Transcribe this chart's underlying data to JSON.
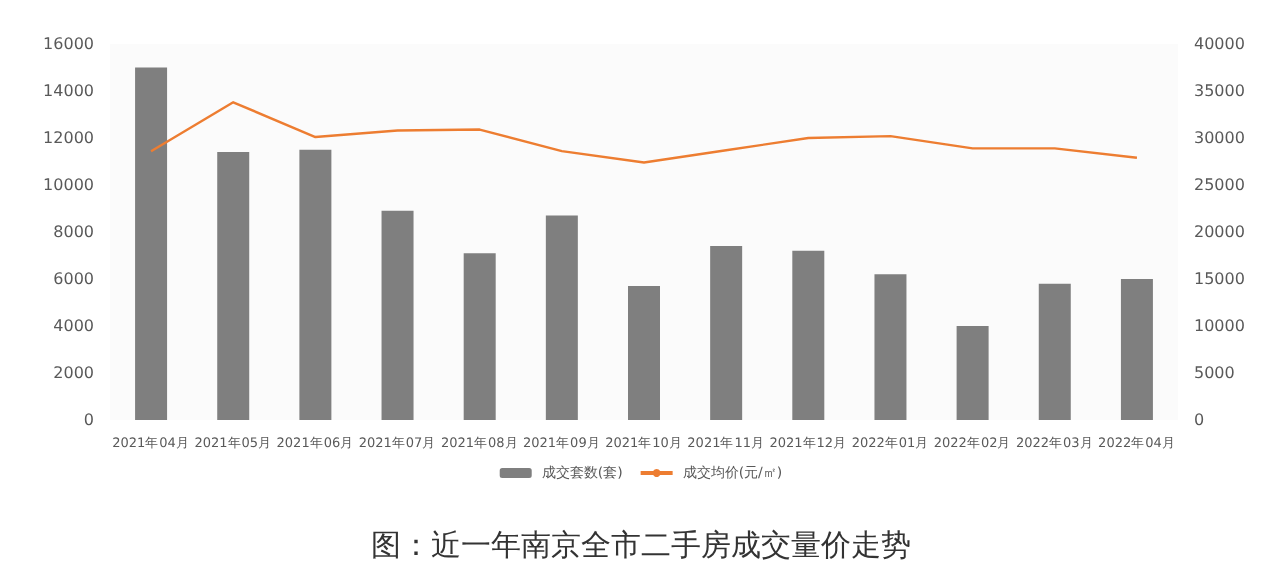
{
  "chart_data": {
    "type": "bar",
    "title": "图：近一年南京全市二手房成交量价走势",
    "categories": [
      "2021年04月",
      "2021年05月",
      "2021年06月",
      "2021年07月",
      "2021年08月",
      "2021年09月",
      "2021年10月",
      "2021年11月",
      "2021年12月",
      "2022年01月",
      "2022年02月",
      "2022年03月",
      "2022年04月"
    ],
    "series": [
      {
        "name": "成交套数(套)",
        "color": "#7f7f7f",
        "values": [
          15000,
          11400,
          11500,
          8900,
          7100,
          8700,
          5700,
          7400,
          7200,
          6200,
          4000,
          5800,
          6000
        ]
      },
      {
        "name": "成交均价(元/㎡)",
        "type": "line",
        "axis": "y2",
        "color": "#ed7d31",
        "values": [
          28600,
          33800,
          30100,
          30800,
          30900,
          28600,
          27400,
          28700,
          30000,
          30200,
          28900,
          28900,
          27900
        ]
      }
    ],
    "ylim": [
      0,
      16000
    ],
    "yticks": [
      0,
      2000,
      4000,
      6000,
      8000,
      10000,
      12000,
      14000,
      16000
    ],
    "y2lim": [
      0,
      40000
    ],
    "y2ticks": [
      0,
      5000,
      10000,
      15000,
      20000,
      25000,
      30000,
      35000,
      40000
    ],
    "grid": false,
    "legend": "bottom",
    "marker": "none"
  }
}
